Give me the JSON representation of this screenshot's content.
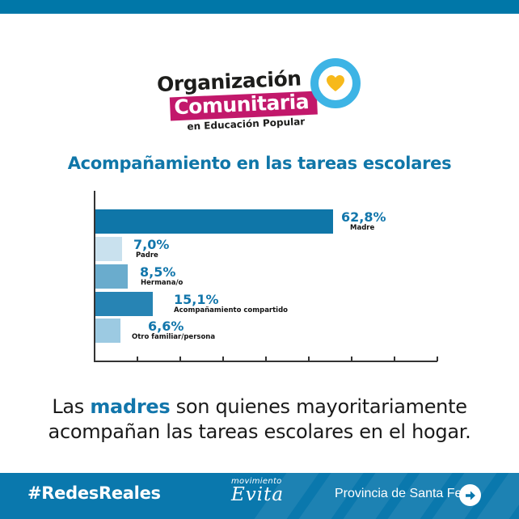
{
  "header": {
    "bar_color": "#0077a8"
  },
  "logo": {
    "line1": "Organización",
    "line2": "Comunitaria",
    "line3": "en Educación Popular",
    "icon": "heart-in-ring-icon",
    "colors": {
      "banner": "#c2186b",
      "ring": "#3db4e5",
      "heart": "#f7b91b"
    }
  },
  "chart_data": {
    "type": "bar",
    "orientation": "horizontal",
    "title": "Acompañamiento en las tareas escolares",
    "xlabel": "",
    "ylabel": "",
    "unit": "%",
    "categories": [
      "Madre",
      "Padre",
      "Hermana/o",
      "Acompañamiento compartido",
      "Otro familiar/persona"
    ],
    "values": [
      62.8,
      7.0,
      8.5,
      15.1,
      6.6
    ],
    "value_labels": [
      "62,8%",
      "7,0%",
      "8,5%",
      "15,1%",
      "6,6%"
    ],
    "bar_colors": [
      "#0f76a8",
      "#c9e1ee",
      "#6aaccd",
      "#2784b4",
      "#9ccae2"
    ],
    "x_ticks": 8,
    "grid": false,
    "legend": "none"
  },
  "summary": {
    "pre": "Las ",
    "highlight": "madres",
    "post": " son quienes mayoritariamente acompañan las tareas escolares en el hogar."
  },
  "footer": {
    "hashtag": "#RedesReales",
    "brand_small": "movimiento",
    "brand_main": "Evita",
    "province": "Provincia de Santa Fe",
    "arrow_icon": "arrow-right-circle-icon",
    "bg_color": "#0a78ad"
  }
}
